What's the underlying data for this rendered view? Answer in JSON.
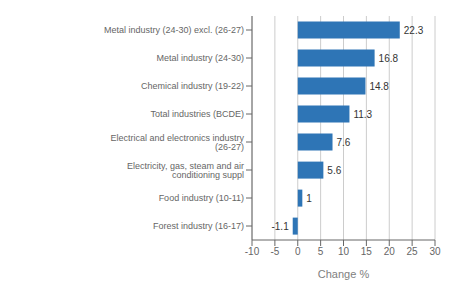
{
  "chart_data": {
    "type": "bar",
    "orientation": "horizontal",
    "categories": [
      "Forest industry (16-17)",
      "Food industry (10-11)",
      "Electricity, gas, steam and air conditioning suppl",
      "Electrical and electronics industry (26-27)",
      "Total industries (BCDE)",
      "Chemical industry (19-22)",
      "Metal industry (24-30)",
      "Metal industry (24-30) excl. (26-27)"
    ],
    "values": [
      -1.1,
      1.0,
      5.6,
      7.6,
      11.3,
      14.8,
      16.8,
      22.3
    ],
    "color": "#2E75B6",
    "xlim": [
      -10,
      30
    ],
    "xticks": [
      -10,
      -5,
      0,
      5,
      10,
      15,
      20,
      25,
      30
    ],
    "xlabel": "Change %",
    "data_labels": true,
    "grid": true
  }
}
